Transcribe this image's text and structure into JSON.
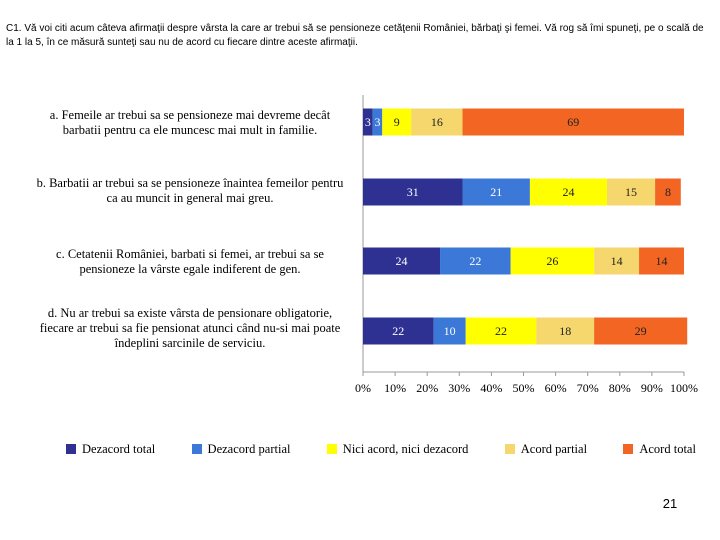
{
  "question": "C1. Vă voi citi acum câteva afirmaţii despre vârsta la care ar trebui să se pensioneze cetăţenii României, bărbaţi şi femei. Vă rog să îmi spuneţi, pe o scală de la 1 la 5, în ce măsură sunteţi sau nu de acord cu fiecare dintre aceste afirmaţii.",
  "page_number": "21",
  "chart_data": {
    "type": "bar",
    "orientation": "horizontal",
    "stacked": true,
    "title": "",
    "xlabel": "",
    "ylabel": "",
    "xlim": [
      0,
      100
    ],
    "x_ticks": [
      "0%",
      "10%",
      "20%",
      "30%",
      "40%",
      "50%",
      "60%",
      "70%",
      "80%",
      "90%",
      "100%"
    ],
    "categories": [
      "a. Femeile ar trebui sa se pensioneze mai devreme decât barbatii pentru ca ele muncesc mai mult in familie.",
      "b. Barbatii ar trebui sa se pensioneze înaintea femeilor pentru ca au muncit in general mai greu.",
      "c. Cetatenii României, barbati si femei, ar trebui sa se pensioneze la vârste egale indiferent de gen.",
      "d. Nu ar trebui sa existe vârsta de pensionare obligatorie, fiecare ar trebui sa fie pensionat atunci când nu-si mai poate îndeplini sarcinile de serviciu."
    ],
    "series": [
      {
        "name": "Dezacord total",
        "color": "#2e3192",
        "values": [
          3,
          31,
          24,
          22
        ]
      },
      {
        "name": "Dezacord partial",
        "color": "#3b78d8",
        "values": [
          3,
          21,
          22,
          10
        ]
      },
      {
        "name": "Nici acord, nici dezacord",
        "color": "#ffff00",
        "values": [
          9,
          24,
          26,
          22
        ]
      },
      {
        "name": "Acord partial",
        "color": "#f5d76e",
        "values": [
          16,
          15,
          14,
          18
        ]
      },
      {
        "name": "Acord total",
        "color": "#f26522",
        "values": [
          69,
          8,
          14,
          29
        ]
      }
    ],
    "label_colors": [
      "#ffffff",
      "#ffffff",
      "#222222",
      "#222222",
      "#222222"
    ],
    "legend_position": "bottom"
  }
}
